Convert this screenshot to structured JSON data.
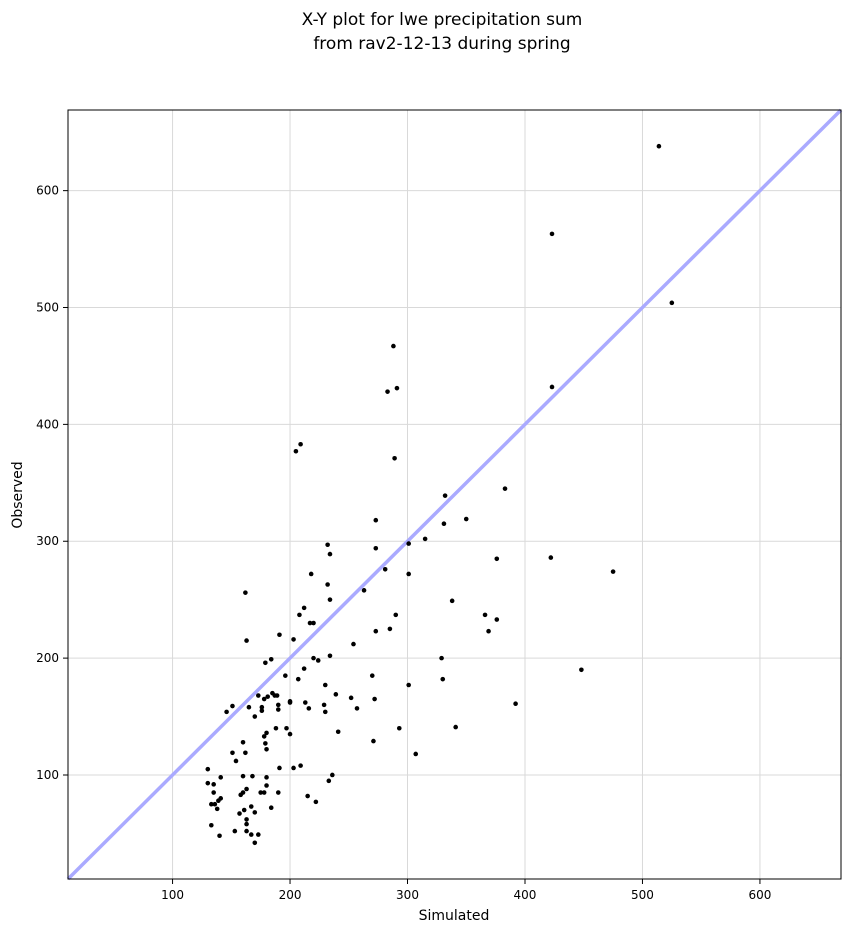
{
  "chart_data": {
    "type": "scatter",
    "title": [
      "X-Y plot for lwe precipitation sum",
      "from rav2-12-13 during spring"
    ],
    "xlabel": "Simulated",
    "ylabel": "Observed",
    "xlim": [
      11,
      669
    ],
    "ylim": [
      11,
      669
    ],
    "xticks": [
      100,
      200,
      300,
      400,
      500,
      600
    ],
    "yticks": [
      100,
      200,
      300,
      400,
      500,
      600
    ],
    "grid": true,
    "reference_line": {
      "kind": "y=x",
      "color": "#aaaaff"
    },
    "point_color": "#000000",
    "points": [
      [
        514,
        638
      ],
      [
        423,
        563
      ],
      [
        525,
        504
      ],
      [
        423,
        432
      ],
      [
        288,
        467
      ],
      [
        283,
        428
      ],
      [
        291,
        431
      ],
      [
        209,
        383
      ],
      [
        205,
        377
      ],
      [
        289,
        371
      ],
      [
        383,
        345
      ],
      [
        332,
        339
      ],
      [
        273,
        318
      ],
      [
        350,
        319
      ],
      [
        331,
        315
      ],
      [
        315,
        302
      ],
      [
        232,
        297
      ],
      [
        301,
        298
      ],
      [
        273,
        294
      ],
      [
        234,
        289
      ],
      [
        422,
        286
      ],
      [
        376,
        285
      ],
      [
        475,
        274
      ],
      [
        281,
        276
      ],
      [
        301,
        272
      ],
      [
        218,
        272
      ],
      [
        232,
        263
      ],
      [
        263,
        258
      ],
      [
        162,
        256
      ],
      [
        234,
        250
      ],
      [
        338,
        249
      ],
      [
        212,
        243
      ],
      [
        208,
        237
      ],
      [
        290,
        237
      ],
      [
        366,
        237
      ],
      [
        376,
        233
      ],
      [
        217,
        230
      ],
      [
        220,
        230
      ],
      [
        369,
        223
      ],
      [
        285,
        225
      ],
      [
        273,
        223
      ],
      [
        191,
        220
      ],
      [
        163,
        215
      ],
      [
        203,
        216
      ],
      [
        254,
        212
      ],
      [
        200,
        162
      ],
      [
        184,
        199
      ],
      [
        220,
        200
      ],
      [
        234,
        202
      ],
      [
        179,
        196
      ],
      [
        224,
        198
      ],
      [
        329,
        200
      ],
      [
        189,
        168
      ],
      [
        212,
        191
      ],
      [
        185,
        170
      ],
      [
        196,
        185
      ],
      [
        270,
        185
      ],
      [
        207,
        182
      ],
      [
        330,
        182
      ],
      [
        448,
        190
      ],
      [
        230,
        177
      ],
      [
        301,
        177
      ],
      [
        173,
        168
      ],
      [
        181,
        167
      ],
      [
        187,
        168
      ],
      [
        178,
        165
      ],
      [
        239,
        169
      ],
      [
        252,
        166
      ],
      [
        272,
        165
      ],
      [
        213,
        162
      ],
      [
        176,
        158
      ],
      [
        165,
        158
      ],
      [
        190,
        160
      ],
      [
        200,
        163
      ],
      [
        229,
        160
      ],
      [
        257,
        157
      ],
      [
        216,
        157
      ],
      [
        151,
        159
      ],
      [
        230,
        154
      ],
      [
        146,
        154
      ],
      [
        190,
        156
      ],
      [
        392,
        161
      ],
      [
        176,
        155
      ],
      [
        170,
        150
      ],
      [
        241,
        137
      ],
      [
        197,
        140
      ],
      [
        180,
        136
      ],
      [
        341,
        141
      ],
      [
        293,
        140
      ],
      [
        188,
        140
      ],
      [
        178,
        133
      ],
      [
        200,
        135
      ],
      [
        160,
        128
      ],
      [
        271,
        129
      ],
      [
        179,
        127
      ],
      [
        180,
        122
      ],
      [
        162,
        119
      ],
      [
        151,
        119
      ],
      [
        307,
        118
      ],
      [
        154,
        112
      ],
      [
        209,
        108
      ],
      [
        203,
        106
      ],
      [
        191,
        106
      ],
      [
        130,
        105
      ],
      [
        236,
        100
      ],
      [
        168,
        99
      ],
      [
        180,
        98
      ],
      [
        160,
        99
      ],
      [
        141,
        98
      ],
      [
        233,
        95
      ],
      [
        130,
        93
      ],
      [
        135,
        92
      ],
      [
        180,
        91
      ],
      [
        175,
        85
      ],
      [
        190,
        85
      ],
      [
        163,
        88
      ],
      [
        178,
        85
      ],
      [
        135,
        85
      ],
      [
        160,
        85
      ],
      [
        158,
        83
      ],
      [
        141,
        80
      ],
      [
        139,
        78
      ],
      [
        215,
        82
      ],
      [
        222,
        77
      ],
      [
        133,
        75
      ],
      [
        136,
        75
      ],
      [
        167,
        73
      ],
      [
        184,
        72
      ],
      [
        170,
        68
      ],
      [
        161,
        70
      ],
      [
        157,
        67
      ],
      [
        138,
        71
      ],
      [
        163,
        62
      ],
      [
        163,
        58
      ],
      [
        133,
        57
      ],
      [
        153,
        52
      ],
      [
        163,
        52
      ],
      [
        167,
        49
      ],
      [
        173,
        49
      ],
      [
        140,
        48
      ],
      [
        170,
        42
      ]
    ]
  }
}
